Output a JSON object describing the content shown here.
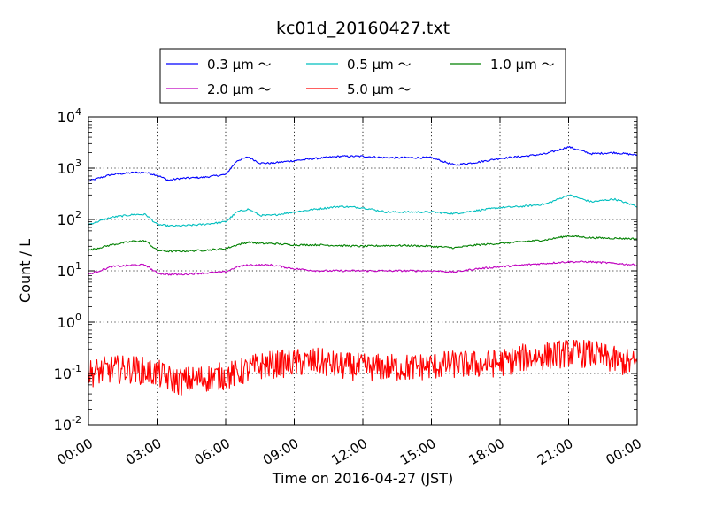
{
  "chart_data": {
    "type": "line",
    "title": "kc01d_20160427.txt",
    "xlabel": "Time on 2016-04-27 (JST)",
    "ylabel": "Count / L",
    "yscale": "log",
    "ylim": [
      0.01,
      10000
    ],
    "xlim": [
      0,
      24
    ],
    "x_unit": "hours",
    "grid": true,
    "legend_position": "top-center",
    "x_ticks": [
      {
        "label": "00:00",
        "value": 0
      },
      {
        "label": "03:00",
        "value": 3
      },
      {
        "label": "06:00",
        "value": 6
      },
      {
        "label": "09:00",
        "value": 9
      },
      {
        "label": "12:00",
        "value": 12
      },
      {
        "label": "15:00",
        "value": 15
      },
      {
        "label": "18:00",
        "value": 18
      },
      {
        "label": "21:00",
        "value": 21
      },
      {
        "label": "00:00",
        "value": 24
      }
    ],
    "y_ticks": [
      {
        "base": "10",
        "exp": "-2",
        "value": 0.01
      },
      {
        "base": "10",
        "exp": "-1",
        "value": 0.1
      },
      {
        "base": "10",
        "exp": "0",
        "value": 1
      },
      {
        "base": "10",
        "exp": "1",
        "value": 10
      },
      {
        "base": "10",
        "exp": "2",
        "value": 100
      },
      {
        "base": "10",
        "exp": "3",
        "value": 1000
      },
      {
        "base": "10",
        "exp": "4",
        "value": 10000
      }
    ],
    "x": [
      0,
      1,
      2,
      2.5,
      3,
      3.5,
      4,
      5,
      6,
      6.5,
      7,
      7.5,
      8,
      9,
      10,
      11,
      12,
      13,
      14,
      15,
      16,
      17,
      18,
      19,
      20,
      21,
      22,
      23,
      24
    ],
    "series": [
      {
        "name": "0.3 μm ～",
        "color": "#0000ff",
        "values": [
          560,
          750,
          820,
          820,
          730,
          580,
          630,
          660,
          750,
          1400,
          1650,
          1250,
          1250,
          1400,
          1550,
          1700,
          1700,
          1600,
          1600,
          1600,
          1150,
          1300,
          1550,
          1700,
          1900,
          2600,
          1900,
          2000,
          1800
        ]
      },
      {
        "name": "0.5 μm ～",
        "color": "#00bfbf",
        "values": [
          80,
          110,
          125,
          125,
          80,
          75,
          75,
          80,
          90,
          140,
          160,
          120,
          120,
          140,
          160,
          180,
          170,
          140,
          140,
          140,
          130,
          150,
          170,
          180,
          200,
          300,
          220,
          250,
          180
        ]
      },
      {
        "name": "1.0 μm ～",
        "color": "#008000",
        "values": [
          25,
          32,
          38,
          38,
          25,
          24,
          24,
          25,
          27,
          32,
          36,
          34,
          34,
          32,
          32,
          31,
          30,
          31,
          31,
          30,
          28,
          32,
          34,
          37,
          40,
          48,
          44,
          43,
          42
        ]
      },
      {
        "name": "2.0 μm ～",
        "color": "#bf00bf",
        "values": [
          8.5,
          12,
          13,
          13,
          9,
          8.5,
          8.5,
          9,
          9.5,
          12,
          13,
          13,
          13,
          11,
          10,
          10,
          10,
          10,
          10,
          10,
          9.5,
          11,
          12,
          13,
          14,
          15,
          15,
          14,
          13
        ]
      },
      {
        "name": "5.0 μm ～",
        "color": "#ff0000",
        "values": [
          0.1,
          0.12,
          0.12,
          0.11,
          0.1,
          0.08,
          0.07,
          0.08,
          0.09,
          0.1,
          0.12,
          0.14,
          0.15,
          0.16,
          0.17,
          0.14,
          0.13,
          0.13,
          0.13,
          0.14,
          0.15,
          0.15,
          0.16,
          0.2,
          0.22,
          0.25,
          0.24,
          0.18,
          0.15
        ]
      }
    ]
  }
}
